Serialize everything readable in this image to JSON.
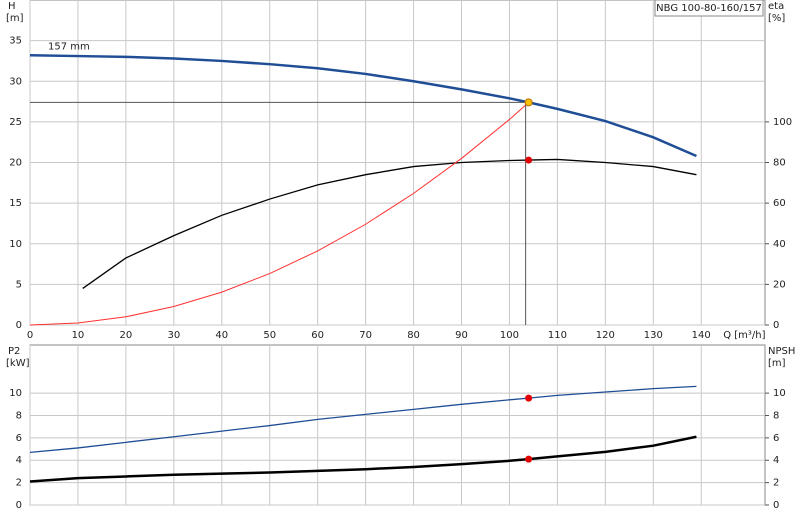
{
  "chart_data": [
    {
      "type": "line",
      "title": "NBG 100-80-160/157",
      "ylabel": "H",
      "yunit": "[m]",
      "y2label": "eta",
      "y2unit": "[%]",
      "xlabel": "Q [m³/h]",
      "xlim": [
        0,
        153.3
      ],
      "xticks": [
        0,
        10,
        20,
        30,
        40,
        50,
        60,
        70,
        80,
        90,
        100,
        110,
        120,
        130,
        140
      ],
      "ylim": [
        0,
        40
      ],
      "yticks": [
        0,
        5,
        10,
        15,
        20,
        25,
        30,
        35
      ],
      "y2lim": [
        0,
        160
      ],
      "y2ticks": [
        0,
        20,
        40,
        60,
        80,
        100
      ],
      "grid": true,
      "series": [
        {
          "label": "157 mm",
          "color": "#1f4e96",
          "width": 2.5,
          "x": [
            0,
            10,
            20,
            30,
            40,
            50,
            60,
            70,
            80,
            90,
            100,
            104,
            110,
            120,
            130,
            139
          ],
          "values": [
            33.2,
            33.1,
            33.0,
            32.8,
            32.5,
            32.1,
            31.6,
            30.9,
            30.0,
            29.0,
            27.9,
            27.4,
            26.6,
            25.1,
            23.1,
            20.8
          ]
        },
        {
          "color": "#000000",
          "width": 1.3,
          "axis": "y2",
          "x": [
            11,
            20,
            30,
            40,
            50,
            60,
            70,
            80,
            90,
            100,
            104,
            110,
            120,
            130,
            139
          ],
          "values": [
            18,
            33,
            44,
            54,
            62,
            69,
            74,
            78,
            80,
            81,
            81.2,
            81.5,
            80,
            78,
            74
          ]
        },
        {
          "color": "#ff3030",
          "width": 1,
          "x": [
            0,
            10,
            20,
            30,
            40,
            50,
            60,
            70,
            80,
            90,
            100,
            104
          ],
          "values": [
            0,
            0.25,
            1.01,
            2.28,
            4.05,
            6.33,
            9.12,
            12.4,
            16.2,
            20.5,
            25.3,
            27.4
          ]
        }
      ],
      "points": [
        {
          "x": 104,
          "y": 27.4,
          "color": "#f5c000",
          "crosshair": true
        },
        {
          "x": 104,
          "y": 81.2,
          "axis": "y2",
          "color": "#e00000"
        }
      ]
    },
    {
      "type": "line",
      "ylabel": "P2",
      "yunit": "[kW]",
      "y2label": "NPSH",
      "y2unit": "[m]",
      "xlim": [
        0,
        153.3
      ],
      "xticks": [
        0,
        10,
        20,
        30,
        40,
        50,
        60,
        70,
        80,
        90,
        100,
        110,
        120,
        130,
        140
      ],
      "ylim": [
        0,
        14.3
      ],
      "yticks": [
        0,
        2,
        4,
        6,
        8,
        10
      ],
      "y2lim": [
        0,
        14.3
      ],
      "y2ticks": [
        0,
        2,
        4,
        6,
        8,
        10
      ],
      "grid": true,
      "series": [
        {
          "color": "#000000",
          "width": 2.5,
          "x": [
            0,
            10,
            20,
            30,
            40,
            50,
            60,
            70,
            80,
            90,
            100,
            104,
            110,
            120,
            130,
            139
          ],
          "values": [
            2.1,
            2.4,
            2.55,
            2.7,
            2.8,
            2.9,
            3.05,
            3.2,
            3.4,
            3.65,
            3.95,
            4.1,
            4.35,
            4.75,
            5.3,
            6.1
          ]
        },
        {
          "color": "#1f4e96",
          "width": 1.3,
          "axis": "y2",
          "x": [
            0,
            10,
            20,
            30,
            40,
            50,
            60,
            70,
            80,
            90,
            100,
            104,
            110,
            120,
            130,
            139
          ],
          "values": [
            4.7,
            5.1,
            5.6,
            6.1,
            6.6,
            7.1,
            7.65,
            8.1,
            8.55,
            9.0,
            9.4,
            9.55,
            9.8,
            10.1,
            10.4,
            10.6
          ]
        }
      ],
      "points": [
        {
          "x": 104,
          "y": 4.1,
          "color": "#e00000"
        },
        {
          "x": 104,
          "y": 9.55,
          "axis": "y2",
          "color": "#e00000"
        }
      ]
    }
  ]
}
